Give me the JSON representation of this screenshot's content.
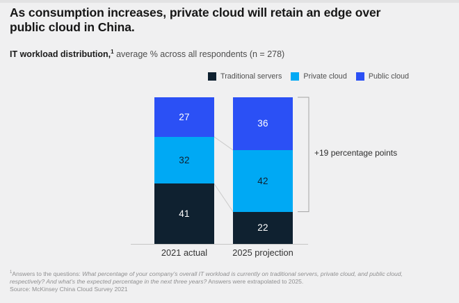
{
  "header": {
    "title_lines": [
      "As consumption increases, private cloud will retain an edge over",
      "public cloud in China."
    ],
    "subtitle_bold": "IT workload distribution,",
    "subtitle_sup": "1",
    "subtitle_rest": " average % across all respondents (n = 278)"
  },
  "legend": [
    {
      "label": "Traditional servers",
      "color": "#0f2130"
    },
    {
      "label": "Private cloud",
      "color": "#00a9f4"
    },
    {
      "label": "Public cloud",
      "color": "#2b50f5"
    }
  ],
  "chart_data": {
    "type": "bar",
    "subtype": "stacked-column",
    "title": "IT workload distribution, average % across all respondents (n = 278)",
    "categories": [
      "2021 actual",
      "2025 projection"
    ],
    "series": [
      {
        "name": "Traditional servers",
        "color": "#0f2130",
        "label_color": "#ffffff",
        "values": [
          41,
          22
        ]
      },
      {
        "name": "Private cloud",
        "color": "#00a9f4",
        "label_color": "#0f2130",
        "values": [
          32,
          42
        ]
      },
      {
        "name": "Public cloud",
        "color": "#2b50f5",
        "label_color": "#ffffff",
        "values": [
          27,
          36
        ]
      }
    ],
    "stack_order_top_to_bottom": [
      "Public cloud",
      "Private cloud",
      "Traditional servers"
    ],
    "ylim": [
      0,
      100
    ],
    "legend_position": "top-right",
    "grid": false,
    "annotation": {
      "text": "+19 percentage points",
      "bracket_category": "2025 projection",
      "bracket_covers": [
        "Public cloud",
        "Private cloud"
      ]
    }
  },
  "footnote": {
    "sup": "1",
    "prefix": "Answers to the questions: ",
    "italic1": "What percentage of your company’s overall IT workload is currently on traditional servers, private cloud, and public cloud,",
    "italic2": "respectively? And what’s the expected percentage in the next three years?",
    "suffix": " Answers were extrapolated to 2025.",
    "source": "Source: McKinsey China Cloud Survey 2021"
  }
}
